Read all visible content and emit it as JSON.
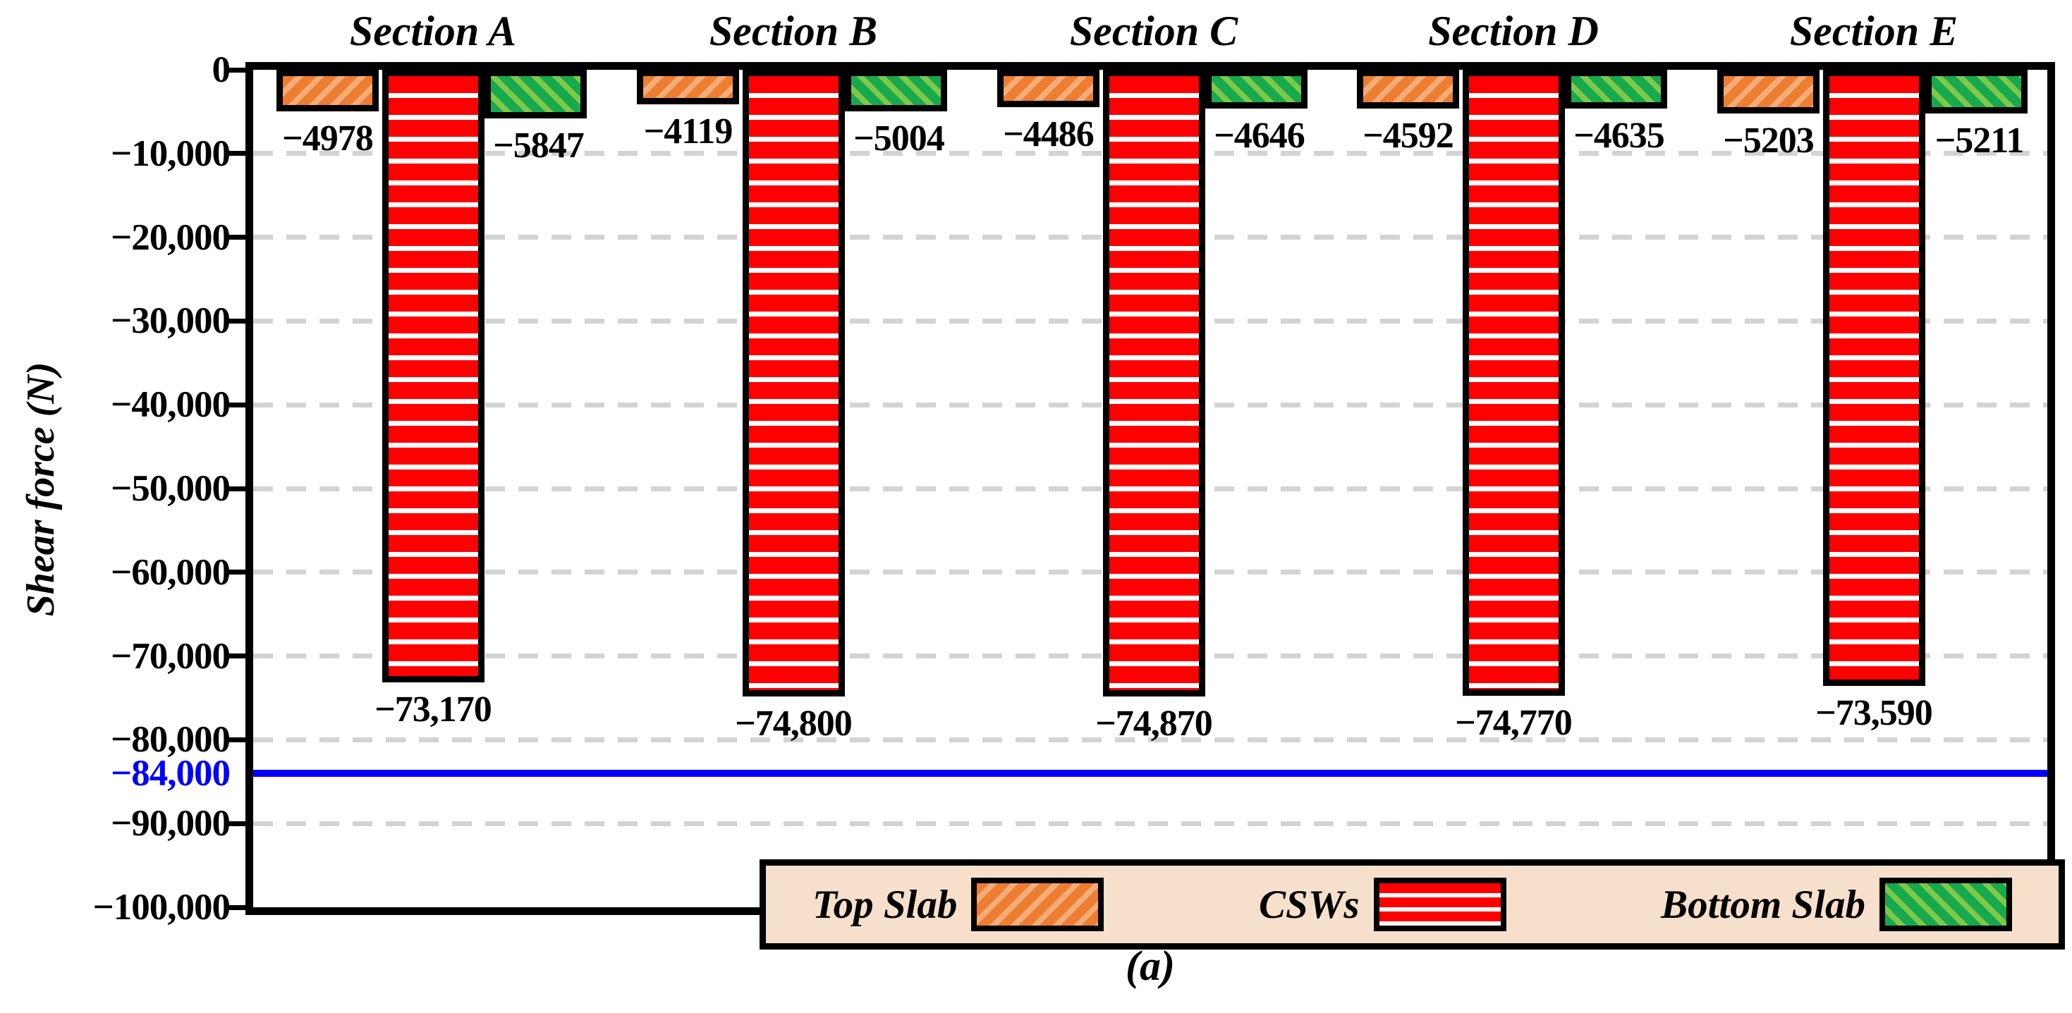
{
  "chart_data": {
    "type": "bar",
    "caption": "(a)",
    "ylabel": "Shear force (N)",
    "ylim": [
      -100000,
      0
    ],
    "grid": "horizontal-dashed",
    "legend_position": "bottom-center-inside",
    "categories": [
      "Section A",
      "Section B",
      "Section C",
      "Section D",
      "Section E"
    ],
    "series": [
      {
        "name": "Top Slab",
        "pattern": "diagonal-forward-hatch",
        "fill": "#ED7D31",
        "hatch": "#F4AC78",
        "values": [
          -4978,
          -4119,
          -4486,
          -4592,
          -5203
        ],
        "value_labels": [
          "−4978",
          "−4119",
          "−4486",
          "−4592",
          "−5203"
        ]
      },
      {
        "name": "CSWs",
        "pattern": "horizontal-stripes",
        "fill": "#FE0000",
        "hatch": "#FFFFFF",
        "values": [
          -73170,
          -74800,
          -74870,
          -74770,
          -73590
        ],
        "value_labels": [
          "−73,170",
          "−74,800",
          "−74,870",
          "−74,770",
          "−73,590"
        ]
      },
      {
        "name": "Bottom Slab",
        "pattern": "diagonal-backward-hatch",
        "fill": "#17A94E",
        "hatch": "#7FC948",
        "values": [
          -5847,
          -5004,
          -4646,
          -4635,
          -5211
        ],
        "value_labels": [
          "−5847",
          "−5004",
          "−4646",
          "−4635",
          "−5211"
        ]
      }
    ],
    "yticks": [
      {
        "value": 0,
        "label": "0"
      },
      {
        "value": -10000,
        "label": "−10,000"
      },
      {
        "value": -20000,
        "label": "−20,000"
      },
      {
        "value": -30000,
        "label": "−30,000"
      },
      {
        "value": -40000,
        "label": "−40,000"
      },
      {
        "value": -50000,
        "label": "−50,000"
      },
      {
        "value": -60000,
        "label": "−60,000"
      },
      {
        "value": -70000,
        "label": "−70,000"
      },
      {
        "value": -80000,
        "label": "−80,000"
      },
      {
        "value": -90000,
        "label": "−90,000"
      },
      {
        "value": -100000,
        "label": "−100,000"
      }
    ],
    "reference_line": {
      "value": -84000,
      "label": "−84,000",
      "color": "#0000FF"
    }
  },
  "colors": {
    "axis": "#000000",
    "grid": "#D3D3D3",
    "text": "#000000",
    "legend_background": "#F7E0CB",
    "reference_line": "#0000FF"
  }
}
